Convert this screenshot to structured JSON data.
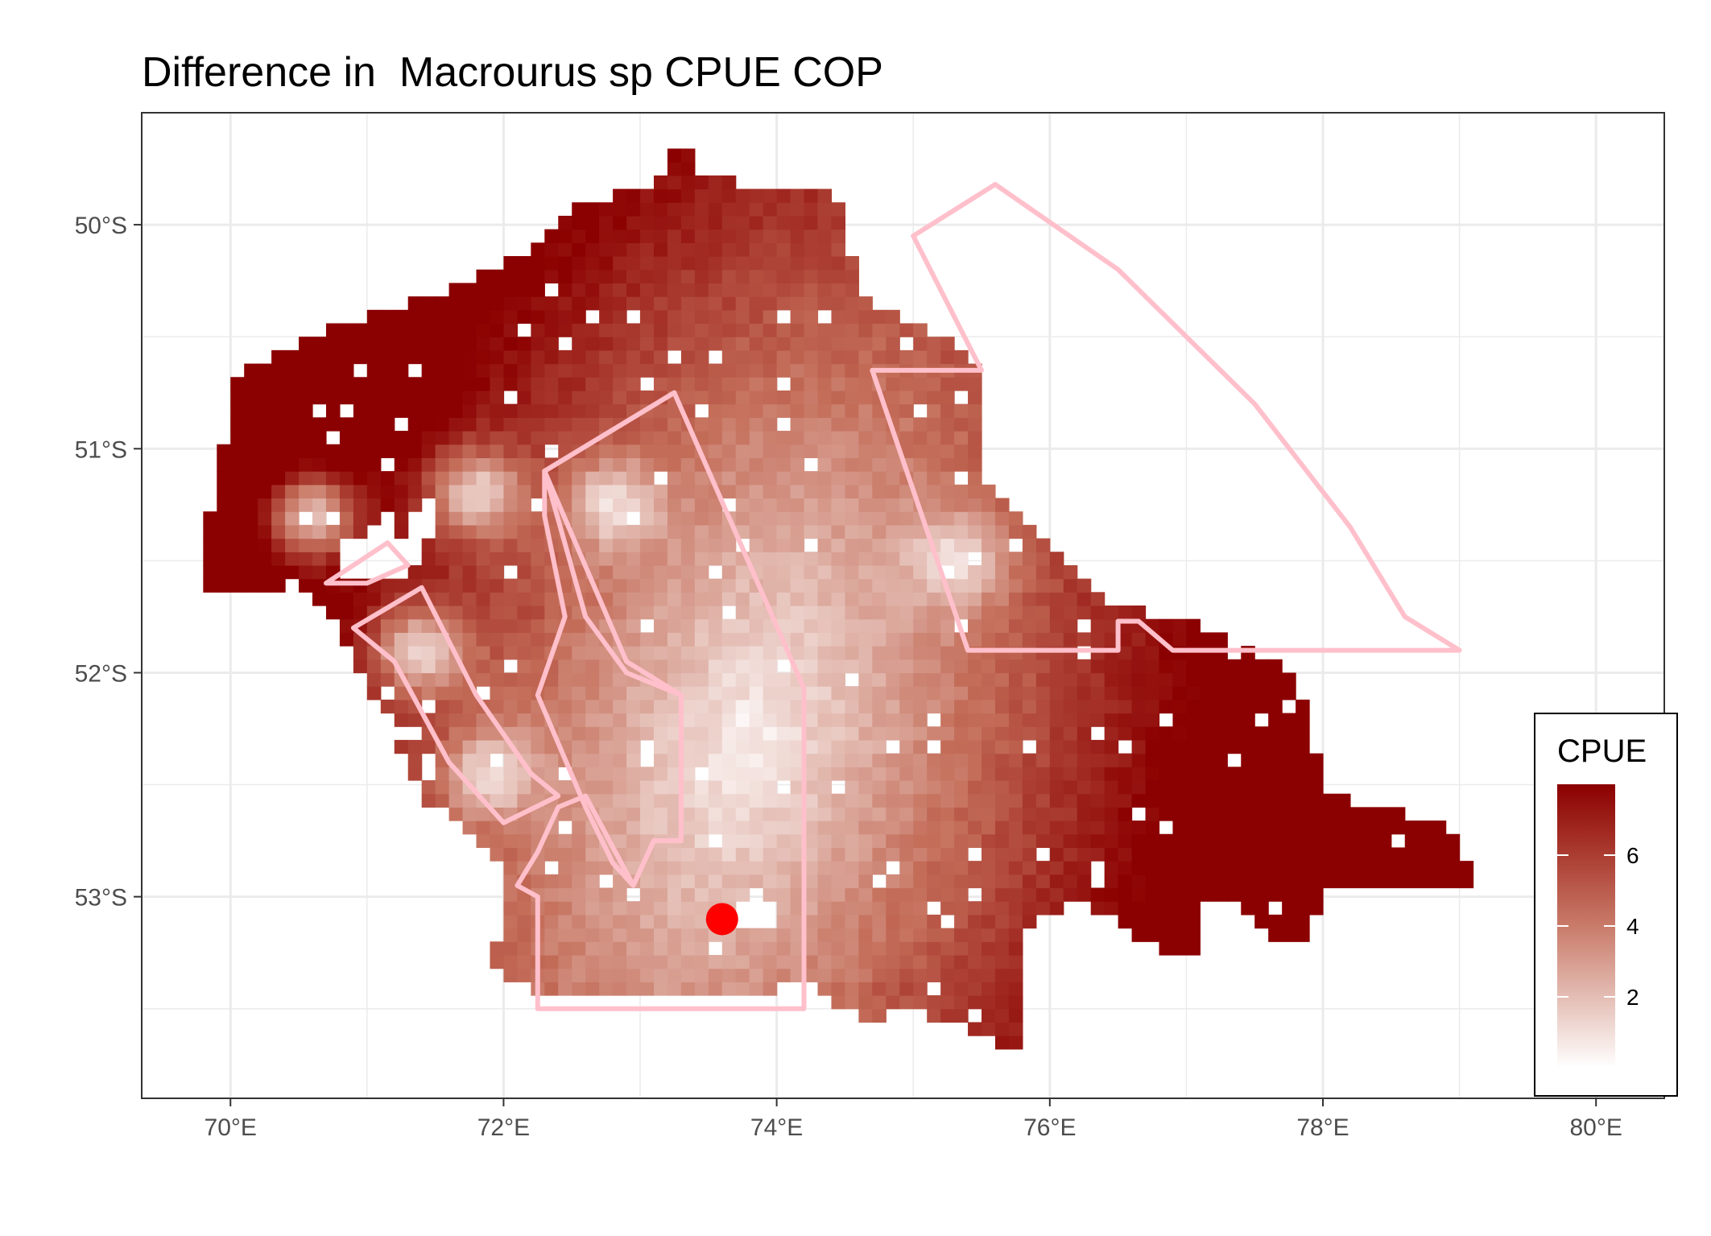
{
  "title": "Difference in  Macrourus sp CPUE COP",
  "chart_data": {
    "type": "heatmap",
    "title": "Difference in  Macrourus sp CPUE COP",
    "xlabel": "",
    "ylabel": "",
    "x_range": [
      69.35,
      80.5
    ],
    "y_range": [
      -53.9,
      -49.5
    ],
    "x_ticks": [
      70,
      72,
      74,
      76,
      78,
      80
    ],
    "x_tick_labels": [
      "70°E",
      "72°E",
      "74°E",
      "76°E",
      "78°E",
      "80°E"
    ],
    "y_ticks": [
      -50,
      -51,
      -52,
      -53
    ],
    "y_tick_labels": [
      "50°S",
      "51°S",
      "52°S",
      "53°S"
    ],
    "grid": true,
    "cell_size_deg": 0.1,
    "legend": {
      "title": "CPUE",
      "placement": "bottom-right",
      "range": [
        0,
        8
      ],
      "breaks": [
        2,
        4,
        6
      ],
      "break_labels": [
        "2",
        "4",
        "6"
      ],
      "colors": {
        "low": "#ffffff",
        "high": "#8b0000"
      }
    },
    "marker": {
      "lon": 73.6,
      "lat": -53.1,
      "color": "#ff0000"
    },
    "boundary_color": "#ffc0cb",
    "polygons": [
      {
        "name": "",
        "points": [
          [
            73.25,
            -50.75
          ],
          [
            72.3,
            -51.1
          ],
          [
            72.6,
            -51.75
          ],
          [
            72.9,
            -52.0
          ],
          [
            73.3,
            -52.1
          ],
          [
            73.3,
            -52.75
          ],
          [
            73.1,
            -52.75
          ],
          [
            72.95,
            -52.95
          ],
          [
            72.8,
            -52.85
          ],
          [
            72.6,
            -52.6
          ],
          [
            72.25,
            -52.1
          ],
          [
            72.45,
            -51.75
          ],
          [
            72.3,
            -51.3
          ],
          [
            72.3,
            -51.1
          ]
        ]
      },
      {
        "name": "",
        "points": [
          [
            73.25,
            -50.75
          ],
          [
            74.2,
            -52.07
          ],
          [
            74.2,
            -53.5
          ],
          [
            72.25,
            -53.5
          ],
          [
            72.25,
            -53.0
          ],
          [
            72.1,
            -52.95
          ],
          [
            72.25,
            -52.8
          ],
          [
            72.4,
            -52.6
          ],
          [
            72.6,
            -52.55
          ],
          [
            72.95,
            -52.95
          ],
          [
            73.1,
            -52.75
          ],
          [
            73.3,
            -52.75
          ],
          [
            73.3,
            -52.1
          ],
          [
            72.9,
            -51.95
          ],
          [
            72.3,
            -51.1
          ]
        ]
      },
      {
        "name": "",
        "points": [
          [
            74.7,
            -50.65
          ],
          [
            75.5,
            -50.65
          ],
          [
            75.0,
            -50.05
          ],
          [
            75.6,
            -49.82
          ],
          [
            76.5,
            -50.2
          ],
          [
            77.5,
            -50.8
          ],
          [
            78.2,
            -51.35
          ],
          [
            78.6,
            -51.75
          ],
          [
            79.0,
            -51.9
          ],
          [
            76.9,
            -51.9
          ],
          [
            76.65,
            -51.77
          ],
          [
            76.5,
            -51.77
          ],
          [
            76.5,
            -51.9
          ],
          [
            75.4,
            -51.9
          ],
          [
            74.7,
            -50.65
          ]
        ]
      },
      {
        "name": "",
        "points": [
          [
            71.15,
            -51.42
          ],
          [
            71.3,
            -51.52
          ],
          [
            71.0,
            -51.6
          ],
          [
            70.7,
            -51.6
          ],
          [
            71.15,
            -51.42
          ]
        ]
      },
      {
        "name": "",
        "points": [
          [
            71.4,
            -51.62
          ],
          [
            71.55,
            -51.8
          ],
          [
            71.8,
            -52.1
          ],
          [
            72.2,
            -52.45
          ],
          [
            72.4,
            -52.55
          ],
          [
            72.0,
            -52.67
          ],
          [
            71.6,
            -52.4
          ],
          [
            71.2,
            -51.95
          ],
          [
            70.9,
            -51.8
          ],
          [
            71.4,
            -51.62
          ]
        ]
      }
    ],
    "cpue_field": {
      "description": "Gridded CPUE difference field; high values at coastal/edge zones, low values in central plateau",
      "hotspots": [
        {
          "lon": 76.7,
          "lat": -53.05,
          "value": 8.0
        },
        {
          "lon": 77.0,
          "lat": -53.2,
          "value": 7.5
        },
        {
          "lon": 75.8,
          "lat": -52.9,
          "value": 6.0
        },
        {
          "lon": 76.5,
          "lat": -52.6,
          "value": 5.5
        },
        {
          "lon": 72.2,
          "lat": -51.7,
          "value": 5.5
        },
        {
          "lon": 70.0,
          "lat": -51.4,
          "value": 5.0
        },
        {
          "lon": 74.9,
          "lat": -53.4,
          "value": 5.5
        }
      ]
    }
  }
}
